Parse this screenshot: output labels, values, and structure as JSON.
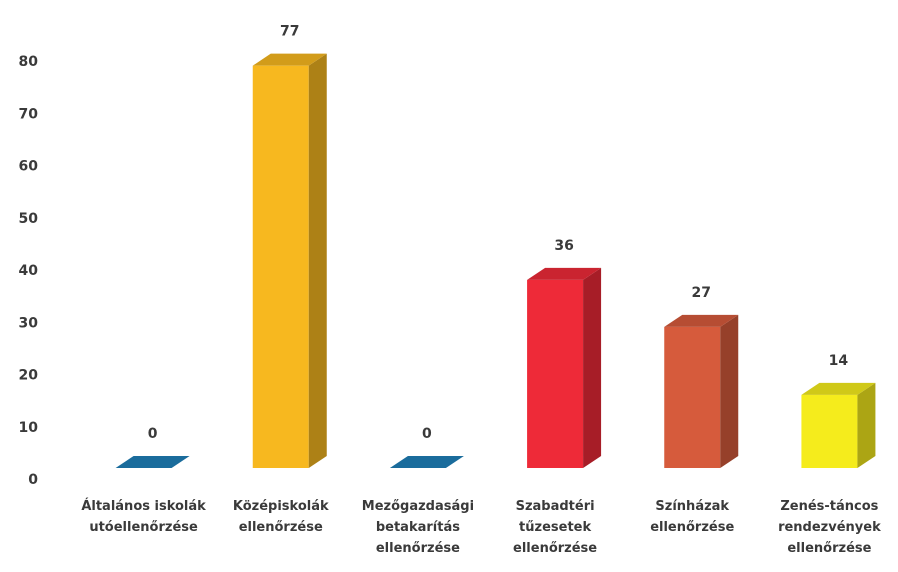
{
  "chart_data": {
    "type": "bar3d",
    "categories": [
      "Általános iskolák utóellenőrzése",
      "Középiskolák ellenőrzése",
      "Mezőgazdasági betakarítás ellenőrzése",
      "Szabadtéri tűzesetek ellenőrzése",
      "Színházak ellenőrzése",
      "Zenés-táncos rendezvények ellenőrzése"
    ],
    "values": [
      0,
      77,
      0,
      36,
      27,
      14
    ],
    "colors": [
      "#1f7fb8",
      "#f7b81f",
      "#1f7fb8",
      "#ee2a38",
      "#d65b3c",
      "#f5ec1c"
    ],
    "ylim": [
      0,
      80
    ],
    "yticks": [
      0,
      10,
      20,
      30,
      40,
      50,
      60,
      70,
      80
    ],
    "grid": false
  }
}
